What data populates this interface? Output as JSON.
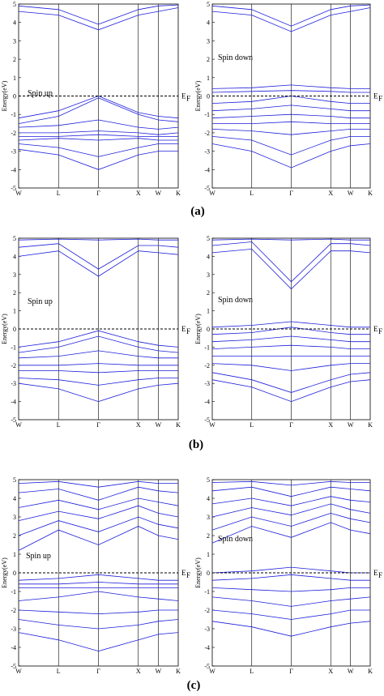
{
  "caption_labels": [
    "(a)",
    "(b)",
    "(c)"
  ],
  "chart_data": [
    {
      "type": "line",
      "name_in_figure": "(a) spin up",
      "ylabel": "Energy(eV)",
      "panel_label": "Spin up",
      "fermi_label": "E_F",
      "ylim": [
        -5,
        5
      ],
      "yticks": [
        -5,
        -4,
        -3,
        -2,
        -1,
        0,
        1,
        2,
        3,
        4,
        5
      ],
      "kpoints": {
        "labels": [
          "W",
          "L",
          "Γ",
          "X",
          "W",
          "K"
        ],
        "positions": [
          0,
          1,
          2,
          3,
          3.5,
          4
        ]
      },
      "series": [
        {
          "values": [
            4.6,
            4.4,
            3.6,
            4.4,
            4.6,
            4.8
          ]
        },
        {
          "values": [
            4.9,
            4.7,
            3.9,
            4.7,
            4.9,
            4.95
          ]
        },
        {
          "values": [
            -1.2,
            -0.8,
            0.0,
            -0.9,
            -1.1,
            -1.2
          ]
        },
        {
          "values": [
            -1.5,
            -1.1,
            -0.1,
            -1.0,
            -1.3,
            -1.4
          ]
        },
        {
          "values": [
            -1.7,
            -1.6,
            -1.3,
            -1.7,
            -1.8,
            -1.7
          ]
        },
        {
          "values": [
            -2.0,
            -2.0,
            -1.9,
            -2.0,
            -2.1,
            -2.0
          ]
        },
        {
          "values": [
            -2.2,
            -2.2,
            -2.1,
            -2.2,
            -2.2,
            -2.2
          ]
        },
        {
          "values": [
            -2.4,
            -2.3,
            -2.4,
            -2.3,
            -2.4,
            -2.4
          ]
        },
        {
          "values": [
            -2.6,
            -2.8,
            -3.3,
            -2.8,
            -2.6,
            -2.6
          ]
        },
        {
          "values": [
            -2.9,
            -3.2,
            -4.0,
            -3.2,
            -3.0,
            -3.0
          ]
        }
      ]
    },
    {
      "type": "line",
      "name_in_figure": "(a) spin down",
      "ylabel": "Energy(eV)",
      "panel_label": "Spin down",
      "fermi_label": "E_F",
      "ylim": [
        -5,
        5
      ],
      "yticks": [
        -5,
        -4,
        -3,
        -2,
        -1,
        0,
        1,
        2,
        3,
        4,
        5
      ],
      "kpoints": {
        "labels": [
          "W",
          "L",
          "Γ",
          "X",
          "W",
          "K"
        ],
        "positions": [
          0,
          1,
          2,
          3,
          3.5,
          4
        ]
      },
      "series": [
        {
          "values": [
            4.6,
            4.4,
            3.5,
            4.4,
            4.6,
            4.8
          ]
        },
        {
          "values": [
            4.9,
            4.7,
            3.8,
            4.7,
            4.9,
            4.95
          ]
        },
        {
          "values": [
            0.4,
            0.45,
            0.6,
            0.45,
            0.4,
            0.4
          ]
        },
        {
          "values": [
            0.2,
            0.25,
            0.3,
            0.25,
            0.2,
            0.2
          ]
        },
        {
          "values": [
            -0.4,
            -0.3,
            0.0,
            -0.3,
            -0.4,
            -0.4
          ]
        },
        {
          "values": [
            -0.8,
            -0.7,
            -0.5,
            -0.7,
            -0.8,
            -0.8
          ]
        },
        {
          "values": [
            -1.2,
            -1.1,
            -1.0,
            -1.1,
            -1.2,
            -1.2
          ]
        },
        {
          "values": [
            -1.5,
            -1.5,
            -1.4,
            -1.5,
            -1.5,
            -1.5
          ]
        },
        {
          "values": [
            -1.8,
            -1.9,
            -2.1,
            -1.9,
            -1.8,
            -1.8
          ]
        },
        {
          "values": [
            -2.2,
            -2.4,
            -3.2,
            -2.4,
            -2.2,
            -2.2
          ]
        },
        {
          "values": [
            -2.6,
            -3.0,
            -3.9,
            -3.0,
            -2.7,
            -2.6
          ]
        }
      ]
    },
    {
      "type": "line",
      "name_in_figure": "(b) spin up",
      "ylabel": "Energy(eV)",
      "panel_label": "Spin up",
      "fermi_label": "E_F",
      "ylim": [
        -5,
        5
      ],
      "yticks": [
        -5,
        -4,
        -3,
        -2,
        -1,
        0,
        1,
        2,
        3,
        4,
        5
      ],
      "kpoints": {
        "labels": [
          "W",
          "L",
          "Γ",
          "X",
          "W",
          "K"
        ],
        "positions": [
          0,
          1,
          2,
          3,
          3.5,
          4
        ]
      },
      "series": [
        {
          "values": [
            4.0,
            4.3,
            2.9,
            4.3,
            4.2,
            4.1
          ]
        },
        {
          "values": [
            4.5,
            4.7,
            3.3,
            4.6,
            4.6,
            4.5
          ]
        },
        {
          "values": [
            4.9,
            4.95,
            4.9,
            4.95,
            4.9,
            4.9
          ]
        },
        {
          "values": [
            -1.0,
            -0.7,
            -0.1,
            -0.7,
            -0.9,
            -1.0
          ]
        },
        {
          "values": [
            -1.3,
            -1.0,
            -0.4,
            -1.0,
            -1.2,
            -1.3
          ]
        },
        {
          "values": [
            -1.6,
            -1.5,
            -1.2,
            -1.5,
            -1.6,
            -1.6
          ]
        },
        {
          "values": [
            -2.0,
            -2.0,
            -1.9,
            -2.0,
            -2.0,
            -2.0
          ]
        },
        {
          "values": [
            -2.3,
            -2.3,
            -2.4,
            -2.3,
            -2.3,
            -2.3
          ]
        },
        {
          "values": [
            -2.7,
            -2.8,
            -3.1,
            -2.8,
            -2.7,
            -2.7
          ]
        },
        {
          "values": [
            -3.0,
            -3.3,
            -4.0,
            -3.3,
            -3.1,
            -3.0
          ]
        }
      ]
    },
    {
      "type": "line",
      "name_in_figure": "(b) spin down",
      "ylabel": "Energy(eV)",
      "panel_label": "Spin down",
      "fermi_label": "E_F",
      "ylim": [
        -5,
        5
      ],
      "yticks": [
        -5,
        -4,
        -3,
        -2,
        -1,
        0,
        1,
        2,
        3,
        4,
        5
      ],
      "kpoints": {
        "labels": [
          "W",
          "L",
          "Γ",
          "X",
          "W",
          "K"
        ],
        "positions": [
          0,
          1,
          2,
          3,
          3.5,
          4
        ]
      },
      "series": [
        {
          "values": [
            4.2,
            4.4,
            2.2,
            4.3,
            4.3,
            4.2
          ]
        },
        {
          "values": [
            4.6,
            4.8,
            2.6,
            4.7,
            4.7,
            4.6
          ]
        },
        {
          "values": [
            4.9,
            4.95,
            4.9,
            4.95,
            4.9,
            4.9
          ]
        },
        {
          "values": [
            0.1,
            0.2,
            0.4,
            0.2,
            0.1,
            0.1
          ]
        },
        {
          "values": [
            -0.3,
            -0.2,
            0.1,
            -0.2,
            -0.3,
            -0.3
          ]
        },
        {
          "values": [
            -0.7,
            -0.6,
            -0.4,
            -0.6,
            -0.7,
            -0.7
          ]
        },
        {
          "values": [
            -1.1,
            -1.0,
            -0.9,
            -1.0,
            -1.1,
            -1.1
          ]
        },
        {
          "values": [
            -1.5,
            -1.5,
            -1.5,
            -1.5,
            -1.5,
            -1.5
          ]
        },
        {
          "values": [
            -1.9,
            -2.0,
            -2.3,
            -2.0,
            -1.9,
            -1.9
          ]
        },
        {
          "values": [
            -2.4,
            -2.8,
            -3.5,
            -2.8,
            -2.5,
            -2.4
          ]
        },
        {
          "values": [
            -2.8,
            -3.2,
            -4.0,
            -3.2,
            -2.9,
            -2.8
          ]
        }
      ]
    },
    {
      "type": "line",
      "name_in_figure": "(c) spin up",
      "ylabel": "Energy(eV)",
      "panel_label": "Spin up",
      "fermi_label": "E_F",
      "ylim": [
        -5,
        5
      ],
      "yticks": [
        -5,
        -4,
        -3,
        -2,
        -1,
        0,
        1,
        2,
        3,
        4,
        5
      ],
      "kpoints": {
        "labels": [
          "W",
          "L",
          "Γ",
          "X",
          "W",
          "K"
        ],
        "positions": [
          0,
          1,
          2,
          3,
          3.5,
          4
        ]
      },
      "series": [
        {
          "values": [
            1.2,
            2.3,
            1.5,
            2.5,
            2.0,
            1.8
          ]
        },
        {
          "values": [
            2.0,
            2.8,
            2.2,
            3.0,
            2.6,
            2.4
          ]
        },
        {
          "values": [
            2.8,
            3.3,
            2.9,
            3.6,
            3.2,
            3.0
          ]
        },
        {
          "values": [
            3.5,
            3.9,
            3.4,
            4.0,
            3.8,
            3.6
          ]
        },
        {
          "values": [
            4.3,
            4.5,
            3.9,
            4.6,
            4.4,
            4.3
          ]
        },
        {
          "values": [
            4.8,
            4.9,
            4.6,
            4.9,
            4.8,
            4.8
          ]
        },
        {
          "values": [
            -0.4,
            -0.3,
            -0.1,
            -0.3,
            -0.4,
            -0.4
          ]
        },
        {
          "values": [
            -0.6,
            -0.6,
            -0.5,
            -0.6,
            -0.6,
            -0.6
          ]
        },
        {
          "values": [
            -0.8,
            -0.8,
            -0.8,
            -0.8,
            -0.8,
            -0.8
          ]
        },
        {
          "values": [
            -1.5,
            -1.3,
            -1.0,
            -1.3,
            -1.4,
            -1.5
          ]
        },
        {
          "values": [
            -2.0,
            -2.1,
            -2.2,
            -2.1,
            -2.0,
            -2.0
          ]
        },
        {
          "values": [
            -2.5,
            -2.8,
            -3.0,
            -2.8,
            -2.6,
            -2.5
          ]
        },
        {
          "values": [
            -3.2,
            -3.6,
            -4.2,
            -3.6,
            -3.3,
            -3.2
          ]
        }
      ]
    },
    {
      "type": "line",
      "name_in_figure": "(c) spin down",
      "ylabel": "Energy(eV)",
      "panel_label": "Spin down",
      "fermi_label": "E_F",
      "ylim": [
        -5,
        5
      ],
      "yticks": [
        -5,
        -4,
        -3,
        -2,
        -1,
        0,
        1,
        2,
        3,
        4,
        5
      ],
      "kpoints": {
        "labels": [
          "W",
          "L",
          "Γ",
          "X",
          "W",
          "K"
        ],
        "positions": [
          0,
          1,
          2,
          3,
          3.5,
          4
        ]
      },
      "series": [
        {
          "values": [
            1.6,
            2.5,
            1.9,
            2.7,
            2.3,
            2.1
          ]
        },
        {
          "values": [
            2.3,
            3.0,
            2.5,
            3.2,
            2.9,
            2.7
          ]
        },
        {
          "values": [
            3.0,
            3.5,
            3.1,
            3.7,
            3.4,
            3.2
          ]
        },
        {
          "values": [
            3.7,
            4.0,
            3.6,
            4.1,
            3.9,
            3.8
          ]
        },
        {
          "values": [
            4.4,
            4.6,
            4.1,
            4.6,
            4.5,
            4.4
          ]
        },
        {
          "values": [
            4.85,
            4.9,
            4.7,
            4.9,
            4.85,
            4.85
          ]
        },
        {
          "values": [
            0.0,
            0.1,
            0.3,
            0.1,
            0.0,
            0.0
          ]
        },
        {
          "values": [
            -0.4,
            -0.3,
            -0.1,
            -0.3,
            -0.4,
            -0.4
          ]
        },
        {
          "values": [
            -0.8,
            -0.9,
            -1.0,
            -0.9,
            -0.8,
            -0.8
          ]
        },
        {
          "values": [
            -1.3,
            -1.5,
            -1.8,
            -1.5,
            -1.4,
            -1.3
          ]
        },
        {
          "values": [
            -2.0,
            -2.2,
            -2.5,
            -2.2,
            -2.0,
            -2.0
          ]
        },
        {
          "values": [
            -2.6,
            -2.9,
            -3.4,
            -2.9,
            -2.7,
            -2.6
          ]
        }
      ]
    }
  ]
}
